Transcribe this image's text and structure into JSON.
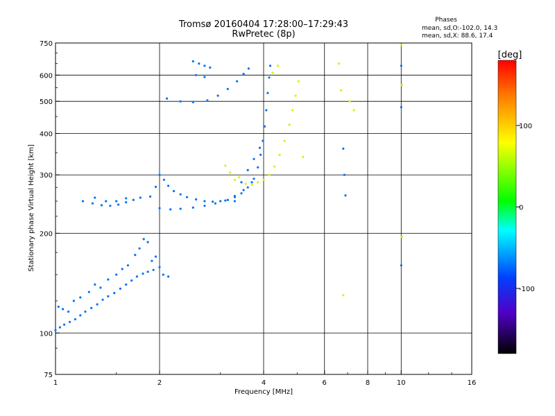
{
  "chart_data": {
    "type": "scatter",
    "title": "Tromsø 20160404 17:28:00–17:29:43",
    "subtitle": "RwPretec (8p)",
    "xlabel": "Frequency [MHz]",
    "ylabel": "Stationary phase Virtual Height [km]",
    "x_scale": "log",
    "y_scale": "log",
    "xlim": [
      1,
      16
    ],
    "ylim": [
      75,
      750
    ],
    "x_ticks": [
      1,
      2,
      4,
      6,
      8,
      10,
      16
    ],
    "x_tick_labels": [
      "1",
      "2",
      "4",
      "6",
      "8",
      "10",
      "16"
    ],
    "y_ticks": [
      75,
      100,
      200,
      300,
      400,
      500,
      600,
      750
    ],
    "y_tick_labels": [
      "75",
      "100",
      "200",
      "300",
      "400",
      "500",
      "600",
      "750"
    ],
    "grid": true,
    "legend": {
      "heading": "Phases",
      "line1": "mean, sd,O:-102.0, 14.3",
      "line2": "mean, sd,X:  88.6, 17.4"
    },
    "colorbar": {
      "label": "[deg]",
      "range": [
        -180,
        180
      ],
      "ticks": [
        100,
        0,
        -100
      ],
      "tick_labels": [
        "100",
        "0",
        "-100"
      ]
    },
    "series": [
      {
        "mode": "O",
        "phase_deg": -102,
        "points": [
          [
            1.0,
            102
          ],
          [
            1.03,
            104
          ],
          [
            1.06,
            106
          ],
          [
            1.1,
            108
          ],
          [
            1.14,
            110
          ],
          [
            1.18,
            113
          ],
          [
            1.22,
            116
          ],
          [
            1.27,
            119
          ],
          [
            1.32,
            122
          ],
          [
            1.37,
            126
          ],
          [
            1.42,
            129
          ],
          [
            1.48,
            132
          ],
          [
            1.54,
            136
          ],
          [
            1.6,
            140
          ],
          [
            1.66,
            144
          ],
          [
            1.72,
            148
          ],
          [
            1.79,
            151
          ],
          [
            1.85,
            153
          ],
          [
            1.92,
            155
          ],
          [
            2.0,
            158
          ],
          [
            1.02,
            120
          ],
          [
            1.05,
            118
          ],
          [
            1.09,
            116
          ],
          [
            1.13,
            125
          ],
          [
            1.18,
            128
          ],
          [
            1.25,
            133
          ],
          [
            1.3,
            140
          ],
          [
            1.35,
            137
          ],
          [
            1.42,
            145
          ],
          [
            1.5,
            150
          ],
          [
            1.56,
            156
          ],
          [
            1.62,
            160
          ],
          [
            1.7,
            172
          ],
          [
            1.75,
            180
          ],
          [
            1.8,
            192
          ],
          [
            1.85,
            188
          ],
          [
            1.9,
            165
          ],
          [
            1.95,
            170
          ],
          [
            2.05,
            150
          ],
          [
            2.12,
            148
          ],
          [
            1.2,
            250
          ],
          [
            1.28,
            246
          ],
          [
            1.36,
            243
          ],
          [
            1.44,
            242
          ],
          [
            1.52,
            244
          ],
          [
            1.6,
            248
          ],
          [
            1.68,
            252
          ],
          [
            1.76,
            256
          ],
          [
            1.3,
            256
          ],
          [
            1.4,
            250
          ],
          [
            1.5,
            250
          ],
          [
            1.6,
            255
          ],
          [
            1.88,
            258
          ],
          [
            1.95,
            276
          ],
          [
            2.0,
            300
          ],
          [
            2.06,
            290
          ],
          [
            2.12,
            278
          ],
          [
            2.2,
            268
          ],
          [
            2.3,
            262
          ],
          [
            2.4,
            257
          ],
          [
            2.55,
            253
          ],
          [
            2.7,
            250
          ],
          [
            2.85,
            249
          ],
          [
            3.0,
            250
          ],
          [
            3.15,
            252
          ],
          [
            3.3,
            257
          ],
          [
            3.45,
            264
          ],
          [
            3.6,
            275
          ],
          [
            3.75,
            292
          ],
          [
            3.85,
            316
          ],
          [
            3.92,
            345
          ],
          [
            3.98,
            380
          ],
          [
            4.03,
            420
          ],
          [
            4.07,
            470
          ],
          [
            4.11,
            530
          ],
          [
            4.15,
            590
          ],
          [
            4.18,
            640
          ],
          [
            2.0,
            238
          ],
          [
            2.15,
            236
          ],
          [
            2.3,
            237
          ],
          [
            2.5,
            239
          ],
          [
            2.7,
            242
          ],
          [
            2.9,
            246
          ],
          [
            3.1,
            251
          ],
          [
            3.3,
            259
          ],
          [
            3.5,
            270
          ],
          [
            3.7,
            285
          ],
          [
            2.1,
            510
          ],
          [
            2.3,
            500
          ],
          [
            2.5,
            497
          ],
          [
            2.75,
            503
          ],
          [
            2.95,
            520
          ],
          [
            3.15,
            545
          ],
          [
            3.35,
            575
          ],
          [
            3.5,
            605
          ],
          [
            3.62,
            628
          ],
          [
            2.5,
            660
          ],
          [
            2.6,
            650
          ],
          [
            2.7,
            640
          ],
          [
            2.8,
            632
          ],
          [
            2.55,
            600
          ],
          [
            2.7,
            592
          ],
          [
            3.3,
            250
          ],
          [
            3.45,
            285
          ],
          [
            3.6,
            310
          ],
          [
            3.75,
            335
          ],
          [
            3.9,
            362
          ],
          [
            6.8,
            360
          ],
          [
            6.85,
            300
          ],
          [
            6.9,
            260
          ],
          [
            10.0,
            640
          ],
          [
            10.0,
            480
          ],
          [
            10.0,
            160
          ]
        ]
      },
      {
        "mode": "X",
        "phase_deg": 89,
        "points": [
          [
            3.85,
            285
          ],
          [
            4.0,
            290
          ],
          [
            4.15,
            300
          ],
          [
            4.3,
            318
          ],
          [
            4.45,
            345
          ],
          [
            4.6,
            380
          ],
          [
            4.75,
            425
          ],
          [
            4.85,
            470
          ],
          [
            4.95,
            520
          ],
          [
            5.05,
            575
          ],
          [
            3.1,
            320
          ],
          [
            3.2,
            305
          ],
          [
            3.3,
            290
          ],
          [
            3.4,
            295
          ],
          [
            3.55,
            282
          ],
          [
            3.7,
            280
          ],
          [
            4.25,
            610
          ],
          [
            4.4,
            640
          ],
          [
            5.2,
            340
          ],
          [
            6.7,
            540
          ],
          [
            7.1,
            500
          ],
          [
            7.3,
            470
          ],
          [
            6.6,
            650
          ],
          [
            10.0,
            740
          ],
          [
            10.05,
            560
          ],
          [
            10.05,
            195
          ],
          [
            6.8,
            130
          ]
        ]
      }
    ]
  }
}
